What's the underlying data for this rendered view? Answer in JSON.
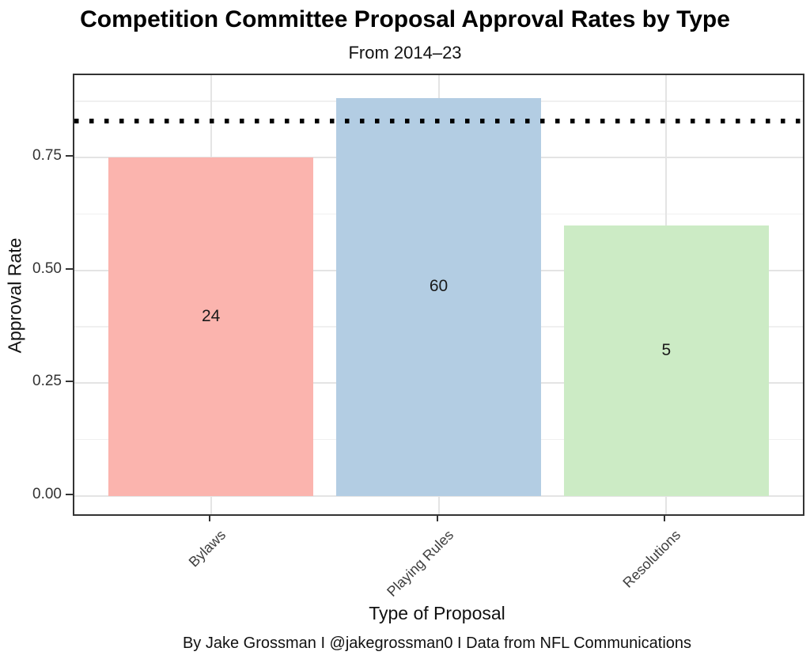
{
  "chart_data": {
    "type": "bar",
    "title": "Competition Committee Proposal Approval Rates by Type",
    "subtitle": "From 2014–23",
    "xlabel": "Type of Proposal",
    "ylabel": "Approval Rate",
    "caption": "By Jake Grossman I @jakegrossman0 I Data from NFL Communications",
    "categories": [
      "Bylaws",
      "Playing Rules",
      "Resolutions"
    ],
    "series": [
      {
        "name": "Approval Rate",
        "values": [
          0.75,
          0.883,
          0.6
        ]
      }
    ],
    "bar_count_labels": [
      "24",
      "60",
      "5"
    ],
    "bar_colors": [
      "#FBB4AE",
      "#B3CDE3",
      "#CCEBC5"
    ],
    "reference_line": {
      "value": 0.831,
      "style": "dotted",
      "color": "#000000"
    },
    "ylim": [
      -0.0404,
      0.9333
    ],
    "y_ticks": [
      {
        "v": 0.0,
        "label": "0.00"
      },
      {
        "v": 0.25,
        "label": "0.25"
      },
      {
        "v": 0.5,
        "label": "0.50"
      },
      {
        "v": 0.75,
        "label": "0.75"
      }
    ],
    "y_minor_ticks": [
      0.125,
      0.375,
      0.625,
      0.875
    ],
    "grid": true,
    "legend_position": "none",
    "panel_border_color": "#333333",
    "gridline_color": "#e4e4e4"
  }
}
